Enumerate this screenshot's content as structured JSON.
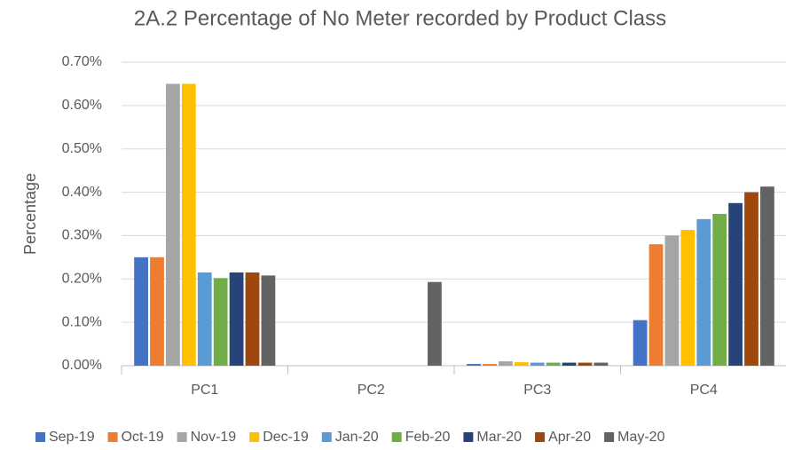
{
  "chart_data": {
    "type": "bar",
    "title": "2A.2 Percentage of No Meter recorded by Product Class",
    "y_label": "Percentage",
    "categories": [
      "PC1",
      "PC2",
      "PC3",
      "PC4"
    ],
    "series": [
      {
        "name": "Sep-19",
        "color": "#4472c4",
        "values": [
          0.25,
          0,
          0.004,
          0.105
        ]
      },
      {
        "name": "Oct-19",
        "color": "#ed7d31",
        "values": [
          0.25,
          0,
          0.004,
          0.28
        ]
      },
      {
        "name": "Nov-19",
        "color": "#a5a5a5",
        "values": [
          0.65,
          0,
          0.01,
          0.3
        ]
      },
      {
        "name": "Dec-19",
        "color": "#ffc000",
        "values": [
          0.65,
          0,
          0.008,
          0.313
        ]
      },
      {
        "name": "Jan-20",
        "color": "#5b9bd5",
        "values": [
          0.215,
          0,
          0.007,
          0.338
        ]
      },
      {
        "name": "Feb-20",
        "color": "#70ad47",
        "values": [
          0.202,
          0,
          0.007,
          0.35
        ]
      },
      {
        "name": "Mar-20",
        "color": "#264478",
        "values": [
          0.215,
          0,
          0.007,
          0.375
        ]
      },
      {
        "name": "Apr-20",
        "color": "#9e480e",
        "values": [
          0.215,
          0,
          0.007,
          0.4
        ]
      },
      {
        "name": "May-20",
        "color": "#636363",
        "values": [
          0.208,
          0.193,
          0.007,
          0.413
        ]
      }
    ],
    "ylim": [
      0,
      0.7
    ],
    "yticks": [
      {
        "value": 0,
        "label": "0.00%"
      },
      {
        "value": 0.1,
        "label": "0.10%"
      },
      {
        "value": 0.2,
        "label": "0.20%"
      },
      {
        "value": 0.3,
        "label": "0.30%"
      },
      {
        "value": 0.4,
        "label": "0.40%"
      },
      {
        "value": 0.5,
        "label": "0.50%"
      },
      {
        "value": 0.6,
        "label": "0.60%"
      },
      {
        "value": 0.7,
        "label": "0.70%"
      }
    ],
    "grid": true,
    "legend": "bottom"
  }
}
